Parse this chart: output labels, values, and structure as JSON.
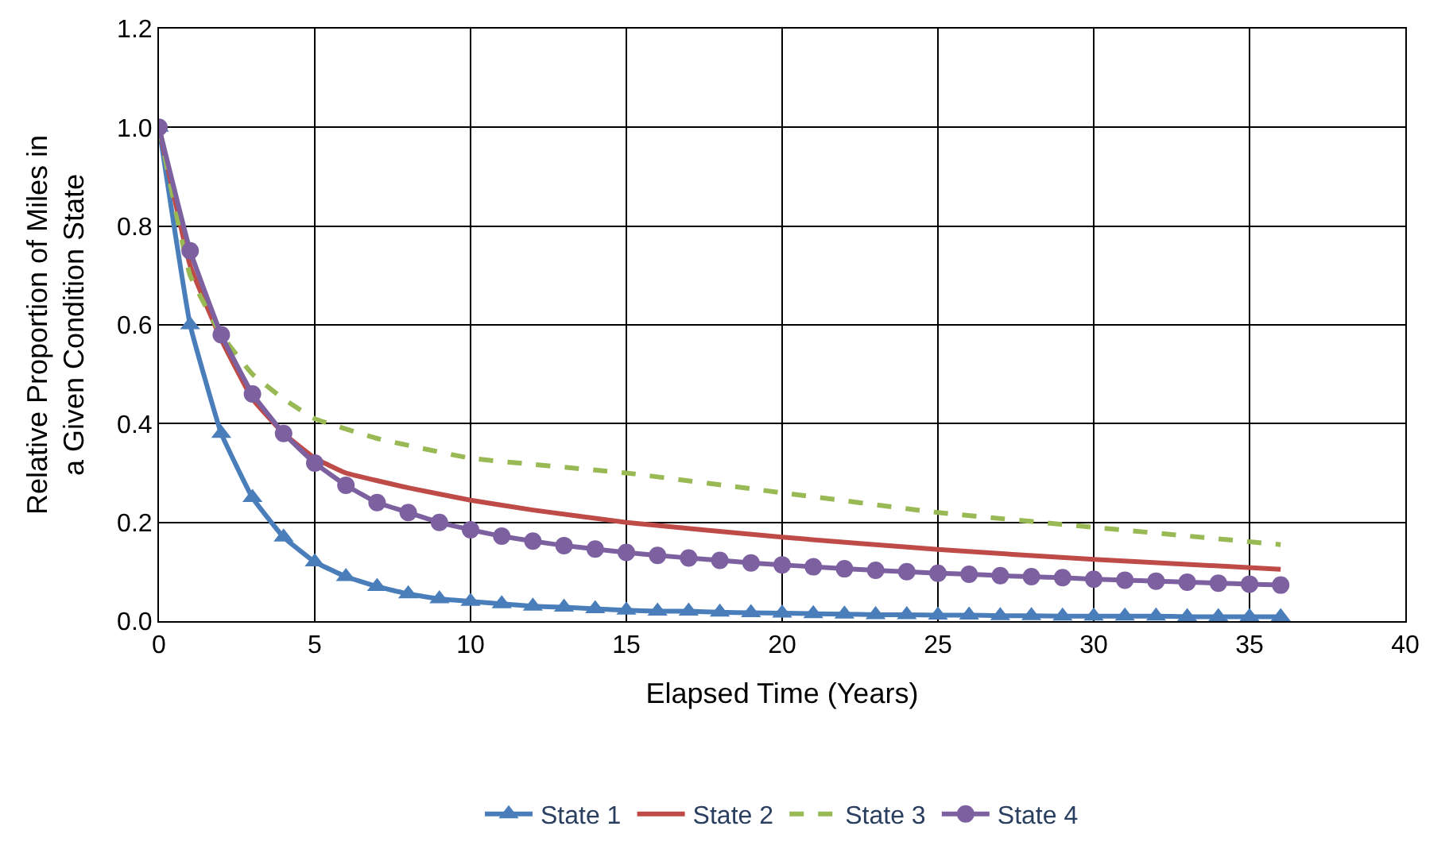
{
  "chart_data": {
    "type": "line",
    "xlabel": "Elapsed Time (Years)",
    "ylabel": "Relative Proportion of Miles in a Given Condition State",
    "xlim": [
      0,
      40
    ],
    "xticks": [
      0,
      5,
      10,
      15,
      20,
      25,
      30,
      35,
      40
    ],
    "ylim": [
      0,
      1.2
    ],
    "yticks": [
      {
        "value": 0,
        "label": "0.0"
      },
      {
        "value": 0.2,
        "label": "0.2"
      },
      {
        "value": 0.4,
        "label": "0.4"
      },
      {
        "value": 0.6,
        "label": "0.6"
      },
      {
        "value": 0.8,
        "label": "0.8"
      },
      {
        "value": 1.0,
        "label": "1.0"
      },
      {
        "value": 1.2,
        "label": "1.2"
      }
    ],
    "grid": true,
    "legend": "bottom",
    "series": [
      {
        "name": "State 1",
        "color": "#4a7ebb",
        "marker": "triangle",
        "line_style": "solid",
        "x": [
          0,
          1,
          2,
          3,
          4,
          5,
          6,
          7,
          8,
          9,
          10,
          11,
          12,
          13,
          14,
          15,
          16,
          17,
          18,
          19,
          20,
          21,
          22,
          23,
          24,
          25,
          26,
          27,
          28,
          29,
          30,
          31,
          32,
          33,
          34,
          35,
          36
        ],
        "values": [
          1.0,
          0.6,
          0.38,
          0.25,
          0.17,
          0.12,
          0.09,
          0.07,
          0.055,
          0.045,
          0.04,
          0.035,
          0.03,
          0.028,
          0.025,
          0.022,
          0.02,
          0.02,
          0.018,
          0.017,
          0.016,
          0.015,
          0.014,
          0.013,
          0.013,
          0.012,
          0.012,
          0.011,
          0.011,
          0.01,
          0.01,
          0.01,
          0.01,
          0.009,
          0.009,
          0.009,
          0.009
        ]
      },
      {
        "name": "State 2",
        "color": "#be4b48",
        "marker": "none",
        "line_style": "solid",
        "x": [
          0,
          1,
          2,
          3,
          4,
          5,
          6,
          8,
          10,
          12,
          15,
          20,
          25,
          30,
          36
        ],
        "values": [
          1.0,
          0.72,
          0.57,
          0.45,
          0.38,
          0.33,
          0.3,
          0.27,
          0.245,
          0.225,
          0.2,
          0.17,
          0.145,
          0.125,
          0.105
        ]
      },
      {
        "name": "State 3",
        "color": "#98b954",
        "marker": "none",
        "line_style": "dashed",
        "x": [
          0,
          1,
          2,
          3,
          4,
          5,
          7,
          10,
          15,
          20,
          25,
          30,
          36
        ],
        "values": [
          1.0,
          0.7,
          0.58,
          0.5,
          0.45,
          0.41,
          0.37,
          0.33,
          0.3,
          0.26,
          0.22,
          0.19,
          0.155
        ]
      },
      {
        "name": "State 4",
        "color": "#7d60a0",
        "marker": "circle",
        "line_style": "solid",
        "x": [
          0,
          1,
          2,
          3,
          4,
          5,
          6,
          7,
          8,
          9,
          10,
          11,
          12,
          13,
          14,
          15,
          16,
          17,
          18,
          19,
          20,
          21,
          22,
          23,
          24,
          25,
          26,
          27,
          28,
          29,
          30,
          31,
          32,
          33,
          34,
          35,
          36
        ],
        "values": [
          1.0,
          0.75,
          0.58,
          0.46,
          0.38,
          0.32,
          0.275,
          0.24,
          0.22,
          0.2,
          0.185,
          0.172,
          0.162,
          0.153,
          0.146,
          0.139,
          0.133,
          0.128,
          0.123,
          0.118,
          0.114,
          0.11,
          0.106,
          0.103,
          0.1,
          0.097,
          0.095,
          0.092,
          0.09,
          0.088,
          0.085,
          0.083,
          0.081,
          0.079,
          0.077,
          0.075,
          0.073
        ]
      }
    ]
  }
}
